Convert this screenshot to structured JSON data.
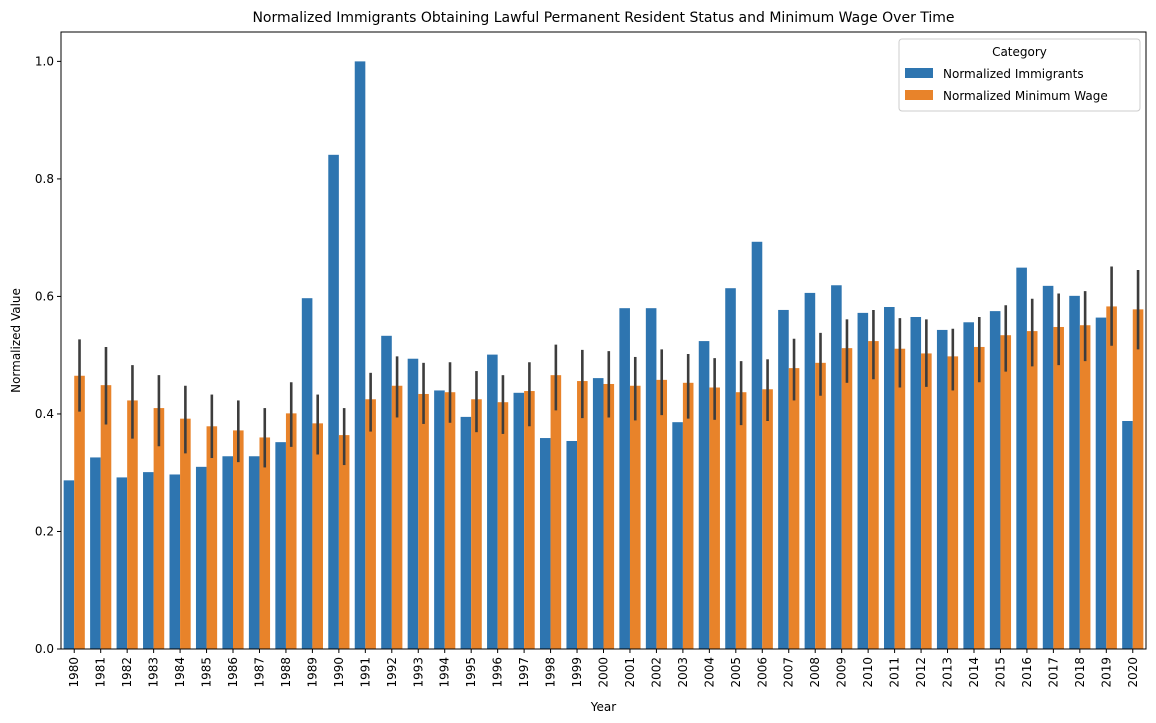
{
  "chart_data": {
    "type": "bar",
    "title": "Normalized Immigrants Obtaining Lawful Permanent Resident Status and Minimum Wage Over Time",
    "xlabel": "Year",
    "ylabel": "Normalized Value",
    "ylim": [
      0,
      1.05
    ],
    "yticks": [
      "0.0",
      "0.2",
      "0.4",
      "0.6",
      "0.8",
      "1.0"
    ],
    "ytick_values": [
      0,
      0.2,
      0.4,
      0.6,
      0.8,
      1.0
    ],
    "grid": false,
    "categories": [
      "1980",
      "1981",
      "1982",
      "1983",
      "1984",
      "1985",
      "1986",
      "1987",
      "1988",
      "1989",
      "1990",
      "1991",
      "1992",
      "1993",
      "1994",
      "1995",
      "1996",
      "1997",
      "1998",
      "1999",
      "2000",
      "2001",
      "2002",
      "2003",
      "2004",
      "2005",
      "2006",
      "2007",
      "2008",
      "2009",
      "2010",
      "2011",
      "2012",
      "2013",
      "2014",
      "2015",
      "2016",
      "2017",
      "2018",
      "2019",
      "2020"
    ],
    "legend": {
      "title": "Category",
      "position": "top-right"
    },
    "series": [
      {
        "name": "Normalized Immigrants",
        "color": "#2e75b0",
        "values": [
          0.287,
          0.326,
          0.292,
          0.301,
          0.297,
          0.31,
          0.328,
          0.328,
          0.352,
          0.597,
          0.841,
          1.0,
          0.533,
          0.494,
          0.44,
          0.395,
          0.501,
          0.436,
          0.359,
          0.354,
          0.461,
          0.58,
          0.58,
          0.386,
          0.524,
          0.614,
          0.693,
          0.577,
          0.606,
          0.619,
          0.572,
          0.582,
          0.565,
          0.543,
          0.556,
          0.575,
          0.649,
          0.618,
          0.601,
          0.564,
          0.388
        ]
      },
      {
        "name": "Normalized Minimum Wage",
        "color": "#e8832a",
        "values": [
          0.465,
          0.449,
          0.423,
          0.41,
          0.392,
          0.379,
          0.372,
          0.36,
          0.401,
          0.384,
          0.364,
          0.425,
          0.448,
          0.434,
          0.437,
          0.425,
          0.42,
          0.439,
          0.466,
          0.456,
          0.451,
          0.448,
          0.458,
          0.453,
          0.445,
          0.437,
          0.442,
          0.478,
          0.487,
          0.512,
          0.524,
          0.511,
          0.503,
          0.498,
          0.514,
          0.534,
          0.541,
          0.548,
          0.551,
          0.583,
          0.578
        ],
        "error_low": [
          0.404,
          0.382,
          0.358,
          0.345,
          0.333,
          0.325,
          0.318,
          0.309,
          0.344,
          0.331,
          0.313,
          0.37,
          0.394,
          0.383,
          0.385,
          0.369,
          0.366,
          0.379,
          0.406,
          0.393,
          0.394,
          0.389,
          0.398,
          0.392,
          0.39,
          0.381,
          0.388,
          0.423,
          0.431,
          0.453,
          0.459,
          0.445,
          0.446,
          0.44,
          0.454,
          0.472,
          0.481,
          0.483,
          0.49,
          0.516,
          0.51
        ],
        "error_high": [
          0.527,
          0.514,
          0.483,
          0.466,
          0.448,
          0.433,
          0.423,
          0.41,
          0.454,
          0.433,
          0.41,
          0.47,
          0.498,
          0.487,
          0.488,
          0.473,
          0.466,
          0.488,
          0.518,
          0.509,
          0.507,
          0.497,
          0.51,
          0.502,
          0.495,
          0.49,
          0.493,
          0.528,
          0.538,
          0.561,
          0.577,
          0.563,
          0.561,
          0.545,
          0.565,
          0.585,
          0.596,
          0.605,
          0.609,
          0.651,
          0.645
        ]
      }
    ]
  }
}
